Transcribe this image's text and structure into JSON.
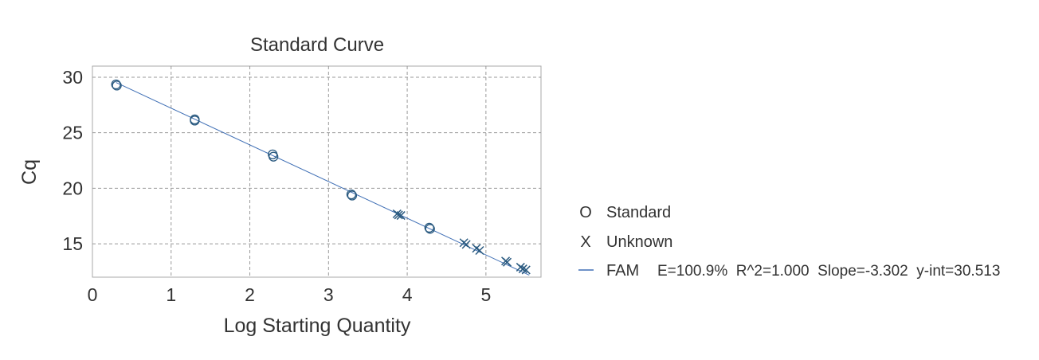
{
  "chart_data": {
    "type": "scatter",
    "title": "Standard Curve",
    "xlabel": "Log Starting Quantity",
    "ylabel": "Cq",
    "xlim": [
      0,
      5.7
    ],
    "ylim": [
      12.0,
      31.0
    ],
    "x_ticks": [
      0,
      1,
      2,
      3,
      4,
      5
    ],
    "y_ticks": [
      15,
      20,
      25,
      30
    ],
    "grid": true,
    "legend_position": "right",
    "series": [
      {
        "name": "Standard",
        "marker": "circle",
        "color": "#2a5a80",
        "points": [
          {
            "x": 0.3,
            "y": 29.35
          },
          {
            "x": 0.31,
            "y": 29.25
          },
          {
            "x": 1.3,
            "y": 26.2
          },
          {
            "x": 1.3,
            "y": 26.1
          },
          {
            "x": 2.29,
            "y": 23.05
          },
          {
            "x": 2.3,
            "y": 22.85
          },
          {
            "x": 3.29,
            "y": 19.45
          },
          {
            "x": 3.3,
            "y": 19.35
          },
          {
            "x": 4.28,
            "y": 16.45
          },
          {
            "x": 4.29,
            "y": 16.35
          }
        ]
      },
      {
        "name": "Unknown",
        "marker": "x",
        "color": "#2a5a80",
        "points": [
          {
            "x": 3.87,
            "y": 17.7
          },
          {
            "x": 3.89,
            "y": 17.6
          },
          {
            "x": 3.92,
            "y": 17.55
          },
          {
            "x": 4.72,
            "y": 15.1
          },
          {
            "x": 4.75,
            "y": 14.95
          },
          {
            "x": 4.88,
            "y": 14.6
          },
          {
            "x": 4.92,
            "y": 14.4
          },
          {
            "x": 5.25,
            "y": 13.45
          },
          {
            "x": 5.27,
            "y": 13.35
          },
          {
            "x": 5.44,
            "y": 12.9
          },
          {
            "x": 5.47,
            "y": 12.75
          },
          {
            "x": 5.51,
            "y": 12.65
          }
        ]
      }
    ],
    "fit": {
      "name": "FAM",
      "color": "#3f6fb5",
      "efficiency": "E=100.9%",
      "r_squared": "R^2=1.000",
      "slope_label": "Slope=-3.302",
      "intercept_label": "y-int=30.513",
      "slope": -3.302,
      "intercept": 30.513,
      "x_range": [
        0.3,
        5.55
      ]
    },
    "legend": {
      "standard_symbol": "O",
      "standard_label": "Standard",
      "unknown_symbol": "X",
      "unknown_label": "Unknown",
      "fit_label": "FAM",
      "fit_stats": "E=100.9%  R^2=1.000  Slope=-3.302  y-int=30.513"
    }
  }
}
